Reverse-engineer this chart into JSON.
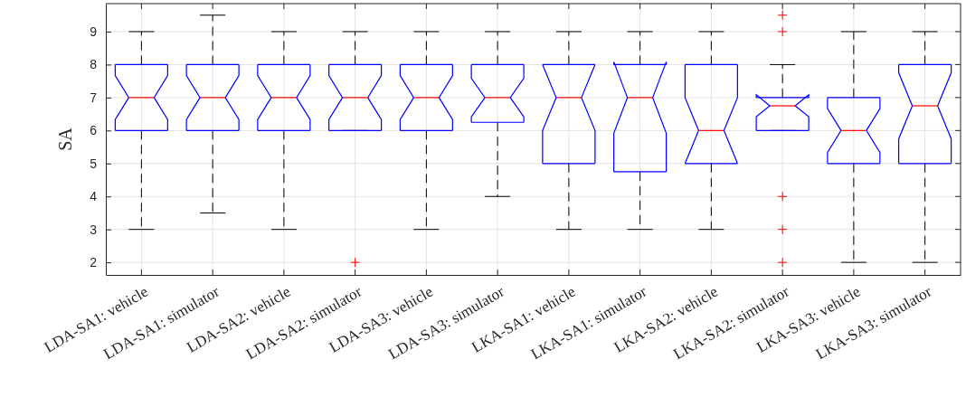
{
  "chart_data": {
    "type": "box",
    "ylabel": "SA",
    "categories": [
      "LDA-SA1: vehicle",
      "LDA-SA1: simulator",
      "LDA-SA2: vehicle",
      "LDA-SA2: simulator",
      "LDA-SA3: vehicle",
      "LDA-SA3: simulator",
      "LKA-SA1: vehicle",
      "LKA-SA1: simulator",
      "LKA-SA2: vehicle",
      "LKA-SA2: simulator",
      "LKA-SA3: vehicle",
      "LKA-SA3: simulator"
    ],
    "boxes": [
      {
        "low": 3,
        "q1": 6,
        "median": 7,
        "q3": 8,
        "high": 9
      },
      {
        "low": 3.5,
        "q1": 6,
        "median": 7,
        "q3": 8,
        "high": 9.5
      },
      {
        "low": 3,
        "q1": 6,
        "median": 7,
        "q3": 8,
        "high": 9
      },
      {
        "low": 6,
        "q1": 6,
        "median": 7,
        "q3": 8,
        "high": 9,
        "outliers": [
          2
        ]
      },
      {
        "low": 3,
        "q1": 6,
        "median": 7,
        "q3": 8,
        "high": 9
      },
      {
        "low": 4,
        "q1": 6.25,
        "median": 7,
        "q3": 8,
        "high": 9
      },
      {
        "low": 3,
        "q1": 5,
        "median": 7,
        "q3": 8,
        "high": 9
      },
      {
        "low": 3,
        "q1": 4.75,
        "median": 7,
        "q3": 8,
        "high": 9
      },
      {
        "low": 3,
        "q1": 5,
        "median": 6,
        "q3": 8,
        "high": 9
      },
      {
        "low": 6,
        "q1": 6,
        "median": 6.75,
        "q3": 7,
        "high": 8,
        "outliers": [
          2,
          3,
          4,
          9,
          9.5
        ]
      },
      {
        "low": 2,
        "q1": 5,
        "median": 6,
        "q3": 7,
        "high": 9
      },
      {
        "low": 2,
        "q1": 5,
        "median": 6.75,
        "q3": 8,
        "high": 9
      }
    ],
    "color": "#0000ff",
    "marker": "cross",
    "ylim": [
      1.62,
      9.85
    ],
    "yticks": [
      2,
      3,
      4,
      5,
      6,
      7,
      8,
      9
    ],
    "grid": true
  }
}
